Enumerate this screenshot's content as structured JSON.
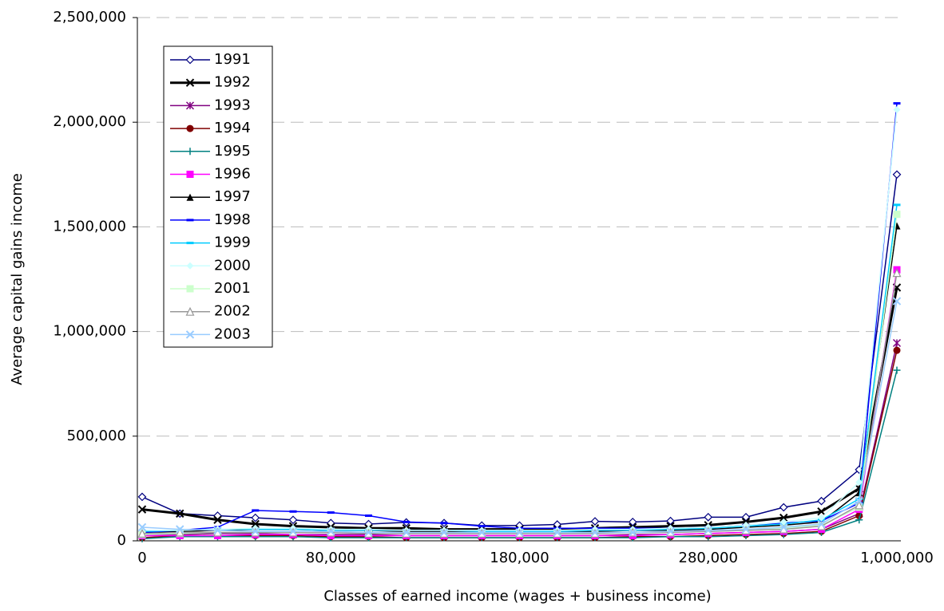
{
  "chart_data": {
    "type": "line",
    "x_label": "Classes of earned income (wages + business income)",
    "y_label": "Average capital gains income",
    "categories": [
      "0",
      null,
      null,
      null,
      null,
      "80,000",
      null,
      null,
      null,
      null,
      "180,000",
      null,
      null,
      null,
      null,
      "280,000",
      null,
      null,
      null,
      null,
      "1,000,000"
    ],
    "ylim": [
      0,
      2500000
    ],
    "yticks": [
      0,
      {
        "value": 500000,
        "label": "500,000"
      },
      {
        "value": 1000000,
        "label": "1,000,000"
      },
      {
        "value": 1500000,
        "label": "1,500,000"
      },
      {
        "value": 2000000,
        "label": "2,000,000"
      },
      {
        "value": 2500000,
        "label": "2,500,000"
      }
    ],
    "grid": true,
    "legend": "upper left",
    "series": [
      {
        "name": "1991",
        "color": "#000080",
        "marker": "diamond-open",
        "values": [
          210000,
          130000,
          120000,
          110000,
          100000,
          85000,
          80000,
          88000,
          85000,
          73000,
          73000,
          78000,
          93000,
          90000,
          95000,
          113000,
          113000,
          160000,
          190000,
          340000,
          1750000
        ]
      },
      {
        "name": "1992",
        "color": "#000000",
        "marker": "x",
        "line_width": 3,
        "values": [
          150000,
          130000,
          100000,
          80000,
          70000,
          65000,
          60000,
          60000,
          55000,
          55000,
          55000,
          55000,
          60000,
          65000,
          70000,
          75000,
          90000,
          110000,
          140000,
          250000,
          1210000
        ]
      },
      {
        "name": "1993",
        "color": "#800080",
        "marker": "star",
        "values": [
          30000,
          30000,
          35000,
          35000,
          30000,
          30000,
          30000,
          25000,
          25000,
          25000,
          25000,
          25000,
          25000,
          30000,
          30000,
          35000,
          40000,
          45000,
          55000,
          130000,
          945000
        ]
      },
      {
        "name": "1994",
        "color": "#800000",
        "marker": "circle",
        "values": [
          15000,
          25000,
          25000,
          25000,
          25000,
          20000,
          20000,
          15000,
          15000,
          15000,
          15000,
          15000,
          15000,
          20000,
          20000,
          25000,
          30000,
          35000,
          45000,
          120000,
          910000
        ]
      },
      {
        "name": "1995",
        "color": "#008080",
        "marker": "plus",
        "values": [
          10000,
          20000,
          20000,
          20000,
          20000,
          15000,
          15000,
          15000,
          15000,
          15000,
          15000,
          15000,
          15000,
          15000,
          20000,
          20000,
          25000,
          30000,
          40000,
          100000,
          815000
        ]
      },
      {
        "name": "1996",
        "color": "#ff00ff",
        "marker": "square",
        "values": [
          25000,
          25000,
          25000,
          30000,
          30000,
          25000,
          25000,
          25000,
          25000,
          25000,
          25000,
          25000,
          25000,
          25000,
          30000,
          35000,
          40000,
          45000,
          55000,
          150000,
          1295000
        ]
      },
      {
        "name": "1997",
        "color": "#000000",
        "marker": "triangle",
        "values": [
          40000,
          45000,
          50000,
          55000,
          55000,
          50000,
          50000,
          45000,
          45000,
          45000,
          45000,
          45000,
          45000,
          50000,
          50000,
          55000,
          65000,
          75000,
          90000,
          230000,
          1505000
        ]
      },
      {
        "name": "1998",
        "color": "#0000ff",
        "marker": "dash",
        "values": [
          40000,
          50000,
          65000,
          145000,
          140000,
          135000,
          120000,
          90000,
          85000,
          70000,
          60000,
          60000,
          60000,
          60000,
          60000,
          65000,
          75000,
          85000,
          95000,
          180000,
          2090000
        ]
      },
      {
        "name": "1999",
        "color": "#00ccff",
        "marker": "dash",
        "values": [
          45000,
          50000,
          55000,
          55000,
          55000,
          50000,
          50000,
          50000,
          50000,
          45000,
          45000,
          45000,
          50000,
          50000,
          55000,
          60000,
          70000,
          80000,
          100000,
          200000,
          1605000
        ]
      },
      {
        "name": "2000",
        "color": "#ccffff",
        "marker": "diamond",
        "values": [
          50000,
          50000,
          55000,
          60000,
          60000,
          55000,
          55000,
          50000,
          50000,
          50000,
          50000,
          50000,
          55000,
          55000,
          60000,
          65000,
          75000,
          90000,
          110000,
          280000,
          2060000
        ]
      },
      {
        "name": "2001",
        "color": "#ccffcc",
        "marker": "square",
        "values": [
          30000,
          35000,
          40000,
          40000,
          40000,
          40000,
          40000,
          35000,
          35000,
          35000,
          35000,
          35000,
          35000,
          40000,
          40000,
          45000,
          50000,
          60000,
          75000,
          160000,
          1560000
        ]
      },
      {
        "name": "2002",
        "color": "#999999",
        "marker": "triangle-open",
        "values": [
          35000,
          40000,
          40000,
          40000,
          40000,
          40000,
          35000,
          35000,
          35000,
          35000,
          35000,
          35000,
          35000,
          40000,
          40000,
          45000,
          50000,
          55000,
          70000,
          170000,
          1280000
        ]
      },
      {
        "name": "2003",
        "color": "#99ccff",
        "marker": "x",
        "values": [
          65000,
          55000,
          50000,
          45000,
          45000,
          45000,
          40000,
          40000,
          40000,
          40000,
          40000,
          40000,
          40000,
          40000,
          45000,
          50000,
          55000,
          65000,
          80000,
          190000,
          1145000
        ]
      }
    ]
  }
}
